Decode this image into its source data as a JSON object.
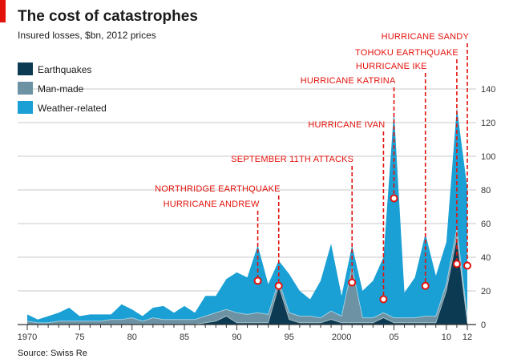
{
  "header": {
    "title": "The cost of catastrophes",
    "subtitle": "Insured losses, $bn, 2012 prices",
    "source": "Source: Swiss Re"
  },
  "colors": {
    "accent": "#e3120b",
    "earthquakes": "#0b3a52",
    "man_made": "#6c92a3",
    "weather": "#1aa0d4",
    "grid": "#b9b9b9",
    "axis": "#333333"
  },
  "chart_data": {
    "type": "area",
    "stacked": true,
    "title": "The cost of catastrophes",
    "subtitle": "Insured losses, $bn, 2012 prices",
    "x": [
      1970,
      1971,
      1972,
      1973,
      1974,
      1975,
      1976,
      1977,
      1978,
      1979,
      1980,
      1981,
      1982,
      1983,
      1984,
      1985,
      1986,
      1987,
      1988,
      1989,
      1990,
      1991,
      1992,
      1993,
      1994,
      1995,
      1996,
      1997,
      1998,
      1999,
      2000,
      2001,
      2002,
      2003,
      2004,
      2005,
      2006,
      2007,
      2008,
      2009,
      2010,
      2011,
      2012
    ],
    "x_tick_values": [
      1970,
      1975,
      1980,
      1985,
      1990,
      1995,
      2000,
      2005,
      2010,
      2012
    ],
    "x_tick_labels": [
      "1970",
      "75",
      "80",
      "85",
      "90",
      "95",
      "2000",
      "05",
      "10",
      "12"
    ],
    "y_ticks": [
      0,
      20,
      40,
      60,
      80,
      100,
      120,
      140
    ],
    "ylim": [
      0,
      150
    ],
    "xlabel": "",
    "ylabel": "Insured losses, $bn, 2012 prices",
    "grid": true,
    "y_axis_position": "right",
    "legend_position": "top-left",
    "series": [
      {
        "name": "Earthquakes",
        "values": [
          0,
          0,
          0,
          0,
          0,
          0,
          0,
          0,
          0,
          0,
          0,
          0,
          0,
          0,
          0,
          0,
          0,
          1,
          2,
          5,
          1,
          1,
          1,
          1,
          23,
          3,
          1,
          1,
          1,
          3,
          1,
          1,
          1,
          1,
          4,
          1,
          1,
          1,
          1,
          1,
          20,
          52,
          1
        ]
      },
      {
        "name": "Man-made",
        "values": [
          2,
          1,
          1,
          2,
          2,
          2,
          2,
          2,
          3,
          3,
          4,
          2,
          4,
          3,
          3,
          3,
          3,
          4,
          5,
          4,
          6,
          5,
          6,
          5,
          3,
          4,
          4,
          4,
          3,
          5,
          4,
          33,
          3,
          3,
          3,
          3,
          3,
          3,
          4,
          4,
          4,
          5,
          4
        ]
      },
      {
        "name": "Weather-related",
        "values": [
          4,
          2,
          4,
          5,
          8,
          3,
          4,
          4,
          3,
          9,
          5,
          3,
          6,
          8,
          4,
          8,
          4,
          12,
          10,
          18,
          24,
          22,
          40,
          18,
          12,
          23,
          15,
          10,
          22,
          40,
          12,
          13,
          16,
          22,
          33,
          123,
          15,
          24,
          49,
          24,
          25,
          72,
          76
        ]
      }
    ],
    "annotations": [
      {
        "label": "HURRICANE ANDREW",
        "year": 1992,
        "marker_value": 26
      },
      {
        "label": "NORTHRIDGE EARTHQUAKE",
        "year": 1994,
        "marker_value": 23
      },
      {
        "label": "SEPTEMBER 11TH ATTACKS",
        "year": 2001,
        "marker_value": 25
      },
      {
        "label": "HURRICANE IVAN",
        "year": 2004,
        "marker_value": 15
      },
      {
        "label": "HURRICANE KATRINA",
        "year": 2005,
        "marker_value": 75
      },
      {
        "label": "HURRICANE IKE",
        "year": 2008,
        "marker_value": 23
      },
      {
        "label": "TOHOKU EARTHQUAKE",
        "year": 2011,
        "marker_value": 36
      },
      {
        "label": "HURRICANE SANDY",
        "year": 2012,
        "marker_value": 35
      }
    ]
  }
}
